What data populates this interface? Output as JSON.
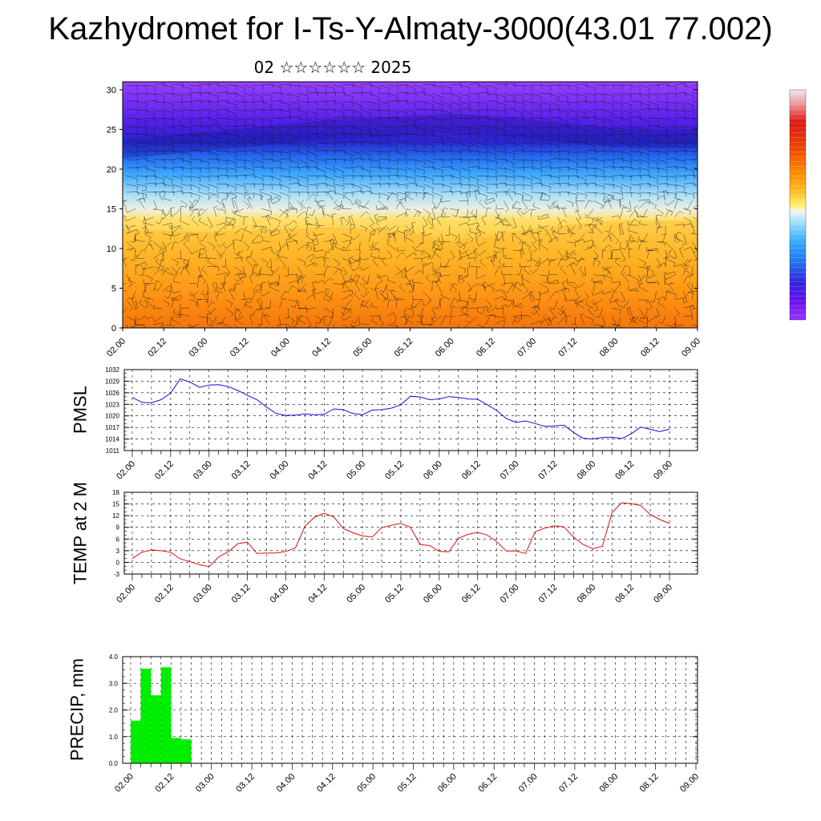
{
  "title": "Kazhydromet for I-Ts-Y-Almaty-3000(43.01 77.002)",
  "subtitle": "02 ☆☆☆☆☆☆ 2025",
  "time_ticks": [
    "02.00",
    "02.12",
    "03.00",
    "03.12",
    "04.00",
    "04.12",
    "05.00",
    "05.12",
    "06.00",
    "06.12",
    "07.00",
    "07.12",
    "08.00",
    "08.12",
    "09.00"
  ],
  "colors": {
    "pmsl_line": "#1010dd",
    "temp_line": "#dd1010",
    "precip_bar": "#00ee00",
    "colorbar": [
      "#eaeaea",
      "#ee9999",
      "#dd1111",
      "#ee4400",
      "#ff8800",
      "#ffbb22",
      "#ffee66",
      "#eeeeff",
      "#99ddff",
      "#33aaff",
      "#2277ee",
      "#3322dd",
      "#6611ee",
      "#9933ff"
    ]
  },
  "chart_data": [
    {
      "type": "heatmap",
      "name": "vertical cross-section with wind barbs",
      "xlabel": "",
      "ylabel": "",
      "x_ticks": [
        "02.00",
        "02.12",
        "03.00",
        "03.12",
        "04.00",
        "04.12",
        "05.00",
        "05.12",
        "06.00",
        "06.12",
        "07.00",
        "07.12",
        "08.00",
        "08.12",
        "09.00"
      ],
      "y_ticks": [
        0,
        5,
        10,
        15,
        20,
        25,
        30
      ],
      "ylim": [
        0,
        31
      ],
      "colorbar": "vertical, right side, unlabeled",
      "overlay": "wind barbs",
      "boundary_warm_cold": {
        "x": [
          0,
          0.5,
          1,
          1.5,
          2,
          2.5,
          3,
          3.5,
          4,
          4.5,
          5,
          5.5,
          6,
          6.5,
          7
        ],
        "y": [
          14,
          13.8,
          13.6,
          13.8,
          14,
          14.2,
          14,
          13.5,
          12.5,
          13.2,
          14,
          14.6,
          15,
          15,
          15
        ]
      },
      "jet_core": {
        "x": [
          0,
          0.5,
          1,
          1.5,
          2,
          2.5,
          3,
          3.5,
          4,
          4.5,
          5,
          5.5,
          6,
          6.5,
          7
        ],
        "y": [
          22.5,
          23,
          23.5,
          24,
          24.5,
          25,
          25.2,
          25.5,
          25.8,
          25.5,
          25,
          24.5,
          24,
          23.8,
          23.8
        ]
      }
    },
    {
      "type": "line",
      "ylabel": "PMSL",
      "xlabel": "",
      "ylim": [
        1011,
        1032
      ],
      "y_ticks": [
        1011,
        1014,
        1017,
        1020,
        1023,
        1026,
        1029,
        1032
      ],
      "x_ticks": [
        "02.00",
        "02.12",
        "03.00",
        "03.12",
        "04.00",
        "04.12",
        "05.00",
        "05.12",
        "06.00",
        "06.12",
        "07.00",
        "07.12",
        "08.00",
        "08.12",
        "09.00"
      ],
      "x": [
        0,
        0.125,
        0.25,
        0.375,
        0.5,
        0.625,
        0.75,
        0.875,
        1,
        1.125,
        1.25,
        1.375,
        1.5,
        1.625,
        1.75,
        1.875,
        2,
        2.125,
        2.25,
        2.375,
        2.5,
        2.625,
        2.75,
        2.875,
        3,
        3.125,
        3.25,
        3.375,
        3.5,
        3.625,
        3.75,
        3.875,
        4,
        4.125,
        4.25,
        4.375,
        4.5,
        4.625,
        4.75,
        4.875,
        5,
        5.125,
        5.25,
        5.375,
        5.5,
        5.625,
        5.75,
        5.875,
        6,
        6.125,
        6.25,
        6.375,
        6.5,
        6.625,
        6.75,
        6.875,
        7
      ],
      "series": [
        {
          "values": [
            1024.8,
            1023.5,
            1023.4,
            1024.2,
            1025.9,
            1029.6,
            1028.8,
            1027.4,
            1028.0,
            1028.1,
            1027.6,
            1026.6,
            1025.3,
            1024.2,
            1022.3,
            1020.6,
            1020.1,
            1020.2,
            1020.5,
            1020.3,
            1020.4,
            1021.8,
            1021.6,
            1020.6,
            1020.3,
            1021.5,
            1021.6,
            1022.0,
            1022.9,
            1025.1,
            1024.9,
            1024.2,
            1024.4,
            1025.0,
            1024.8,
            1024.4,
            1024.3,
            1022.9,
            1021.4,
            1019.3,
            1018.3,
            1018.7,
            1018.0,
            1017.3,
            1017.4,
            1017.6,
            1015.7,
            1014.2,
            1014.0,
            1014.4,
            1014.5,
            1014.1,
            1015.3,
            1017.1,
            1016.5,
            1015.9,
            1016.6
          ]
        }
      ]
    },
    {
      "type": "line",
      "ylabel": "TEMP at 2 M",
      "xlabel": "",
      "ylim": [
        -3,
        18
      ],
      "y_ticks": [
        -3,
        0,
        3,
        6,
        9,
        12,
        15,
        18
      ],
      "x_ticks": [
        "02.00",
        "02.12",
        "03.00",
        "03.12",
        "04.00",
        "04.12",
        "05.00",
        "05.12",
        "06.00",
        "06.12",
        "07.00",
        "07.12",
        "08.00",
        "08.12",
        "09.00"
      ],
      "x": [
        0,
        0.125,
        0.25,
        0.375,
        0.5,
        0.625,
        0.75,
        0.875,
        1,
        1.125,
        1.25,
        1.375,
        1.5,
        1.625,
        1.75,
        1.875,
        2,
        2.125,
        2.25,
        2.375,
        2.5,
        2.625,
        2.75,
        2.875,
        3,
        3.125,
        3.25,
        3.375,
        3.5,
        3.625,
        3.75,
        3.875,
        4,
        4.125,
        4.25,
        4.375,
        4.5,
        4.625,
        4.75,
        4.875,
        5,
        5.125,
        5.25,
        5.375,
        5.5,
        5.625,
        5.75,
        5.875,
        6,
        6.125,
        6.25,
        6.375,
        6.5,
        6.625,
        6.75,
        6.875,
        7
      ],
      "series": [
        {
          "values": [
            1.0,
            2.6,
            3.2,
            3.0,
            2.6,
            0.9,
            0.2,
            -0.6,
            -1.1,
            1.4,
            2.7,
            4.8,
            5.2,
            2.3,
            2.4,
            2.4,
            2.8,
            3.7,
            9.3,
            11.6,
            12.6,
            11.7,
            8.7,
            7.6,
            6.8,
            6.5,
            8.9,
            9.5,
            10.0,
            9.0,
            4.6,
            4.3,
            2.8,
            2.7,
            6.2,
            7.2,
            7.7,
            7.0,
            5.3,
            2.9,
            2.9,
            2.3,
            7.9,
            8.8,
            9.4,
            9.1,
            6.5,
            4.6,
            3.5,
            4.1,
            12.7,
            15.3,
            15.1,
            14.6,
            12.3,
            11.0,
            10.0
          ]
        }
      ]
    },
    {
      "type": "bar",
      "ylabel": "PRECIP, mm",
      "xlabel": "",
      "ylim": [
        0,
        4
      ],
      "y_ticks": [
        "0.0",
        "1.0",
        "2.0",
        "3.0",
        "4.0"
      ],
      "x_ticks": [
        "02.00",
        "02.12",
        "03.00",
        "03.12",
        "04.00",
        "04.12",
        "05.00",
        "05.12",
        "06.00",
        "06.12",
        "07.00",
        "07.12",
        "08.00",
        "08.12",
        "09.00"
      ],
      "x": [
        0.125,
        0.25,
        0.375,
        0.5,
        0.625,
        0.75
      ],
      "series": [
        {
          "values": [
            1.6,
            3.55,
            2.55,
            3.6,
            0.95,
            0.9
          ]
        }
      ]
    }
  ]
}
